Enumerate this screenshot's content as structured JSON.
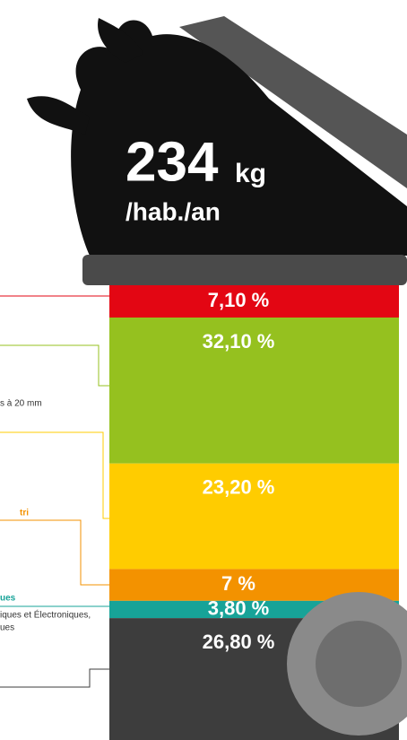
{
  "chart_data": {
    "type": "stacked-bin",
    "title": "234",
    "title_unit": "kg",
    "subtitle": "/hab./an",
    "values": [
      7.1,
      32.1,
      23.2,
      7,
      3.8,
      26.8
    ],
    "value_labels": [
      "7,10 %",
      "32,10 %",
      "23,20 %",
      "7 %",
      "3,80 %",
      "26,80 %"
    ],
    "colors": [
      "#e30613",
      "#95c11f",
      "#ffcc00",
      "#f39200",
      "#17a398",
      "#3d3d3d"
    ],
    "annotations": [
      "s à 20 mm",
      "tri",
      "ues",
      "iques et Électroniques,",
      "ues"
    ]
  }
}
